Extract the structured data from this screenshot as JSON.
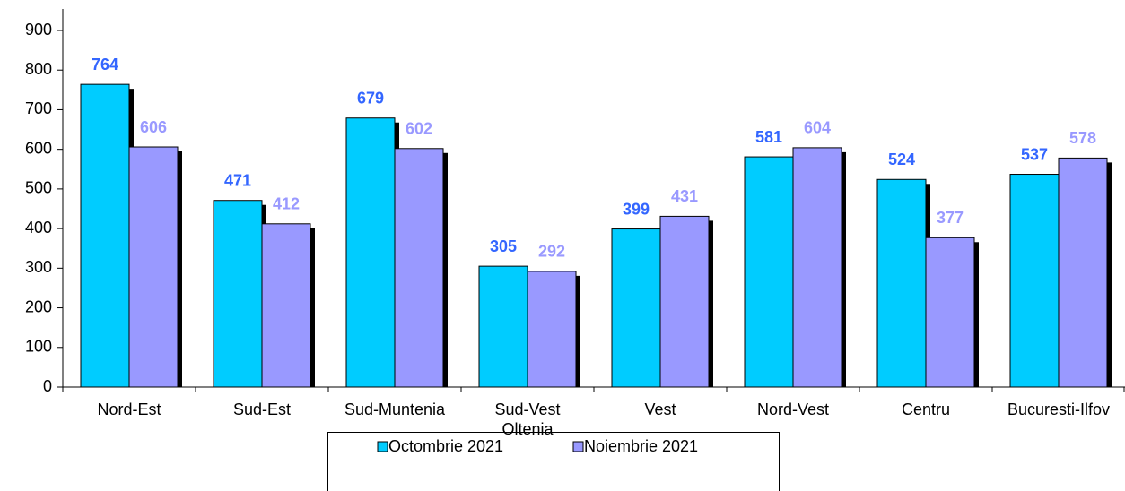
{
  "chart_data": {
    "type": "bar",
    "categories": [
      "Nord-Est",
      "Sud-Est",
      "Sud-Muntenia",
      "Sud-Vest\nOltenia",
      "Vest",
      "Nord-Vest",
      "Centru",
      "Bucuresti-Ilfov"
    ],
    "series": [
      {
        "name": "Octombrie 2021",
        "color": "#00ccff",
        "label_color": "#3366ff",
        "values": [
          764,
          471,
          679,
          305,
          399,
          581,
          524,
          537
        ]
      },
      {
        "name": "Noiembrie 2021",
        "color": "#9999ff",
        "label_color": "#9999ff",
        "values": [
          606,
          412,
          602,
          292,
          431,
          604,
          377,
          578
        ]
      }
    ],
    "ylim": [
      0,
      900
    ],
    "yticks": [
      0,
      100,
      200,
      300,
      400,
      500,
      600,
      700,
      800,
      900
    ],
    "grid": false,
    "legend": "bottom"
  }
}
